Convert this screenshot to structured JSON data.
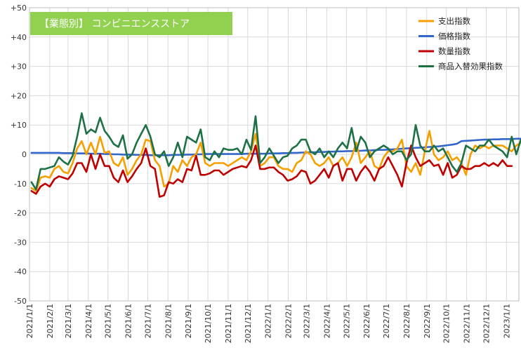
{
  "chart_data": {
    "type": "line",
    "title": "【業態別】 コンビニエンスストア",
    "title_bg_color": "#92d050",
    "xlabel": "",
    "ylabel": "",
    "ylim": [
      -50,
      50
    ],
    "y_ticks": [
      "-50",
      "-40",
      "-30",
      "-20",
      "-10",
      "0",
      "+10",
      "+20",
      "+30",
      "+40",
      "+50"
    ],
    "y_tick_values": [
      -50,
      -40,
      -30,
      -20,
      -10,
      0,
      10,
      20,
      30,
      40,
      50
    ],
    "x_labels": [
      "2021/1/1",
      "2021/2/1",
      "2021/3/1",
      "2021/4/1",
      "2021/5/1",
      "2021/6/1",
      "2021/7/1",
      "2021/8/1",
      "2021/9/1",
      "2021/10/1",
      "2021/11/1",
      "2021/12/1",
      "2022/1/1",
      "2022/2/1",
      "2022/3/1",
      "2022/4/1",
      "2022/5/1",
      "2022/6/1",
      "2022/7/1",
      "2022/8/1",
      "2022/9/1",
      "2022/10/1",
      "2022/11/1",
      "2022/12/1",
      "2023/1/1"
    ],
    "x_label_values": [
      "2021-01-01",
      "2021-02-01",
      "2021-03-01",
      "2021-04-01",
      "2021-05-01",
      "2021-06-01",
      "2021-07-01",
      "2021-08-01",
      "2021-09-01",
      "2021-10-01",
      "2021-11-01",
      "2021-12-01",
      "2022-01-01",
      "2022-02-01",
      "2022-03-01",
      "2022-04-01",
      "2022-05-01",
      "2022-06-01",
      "2022-07-01",
      "2022-08-01",
      "2022-09-01",
      "2022-10-01",
      "2022-11-01",
      "2022-12-01",
      "2023-01-01"
    ],
    "x_start": "2021-01-04",
    "x_step_days": 7,
    "x_range": [
      "2021-01-01",
      "2023-01-20"
    ],
    "grid": true,
    "legend_position": "top-right",
    "series": [
      {
        "name": "支出指数",
        "color": "#f5a000",
        "values": [
          -11.5,
          -12.5,
          -8,
          -7.5,
          -8,
          -5,
          -4,
          -6,
          -6.5,
          -3,
          2,
          4.5,
          0,
          4,
          0,
          6,
          0.5,
          1,
          -3,
          -4,
          -1,
          -7,
          -5,
          -2,
          0,
          5,
          4.5,
          -2,
          -4,
          -11,
          -10,
          -4,
          -6,
          -2,
          -4,
          -1,
          0,
          4,
          -3,
          -4,
          -3,
          -3,
          -3,
          -4,
          -3,
          -2,
          -1,
          -2,
          1,
          7,
          -4,
          -3,
          -1,
          -1,
          -4,
          -5,
          -5,
          -6,
          -3,
          -2,
          1,
          0,
          -3,
          -4,
          -3,
          -1,
          -4,
          -3,
          -1,
          -4,
          -1,
          4,
          -3,
          -1,
          1,
          -4,
          -5,
          -1,
          1,
          1,
          2,
          5,
          -4,
          -6,
          -3,
          -7,
          1,
          8,
          0,
          -2,
          -1,
          1,
          -2,
          -1,
          -3,
          -7,
          0,
          3,
          2,
          3,
          2,
          3,
          3,
          3,
          2,
          1,
          3,
          4
        ]
      },
      {
        "name": "価格指数",
        "color": "#3366cc",
        "values": [
          0.5,
          0.5,
          0.5,
          0.5,
          0.5,
          0.5,
          0.5,
          0.4,
          0.4,
          0.4,
          0.3,
          0.3,
          0.3,
          0.2,
          0.2,
          0.2,
          0.1,
          0.1,
          0,
          0,
          -0.1,
          -0.1,
          -0.1,
          -0.2,
          -0.2,
          -0.2,
          -0.3,
          -0.3,
          -0.3,
          -0.3,
          -0.3,
          -0.2,
          -0.2,
          -0.2,
          -0.1,
          -0.1,
          0,
          0,
          0.1,
          0.1,
          0.1,
          0.1,
          0.1,
          0.1,
          0.1,
          0.1,
          0.1,
          0.2,
          0.2,
          0.2,
          0.2,
          0.2,
          0.3,
          0.3,
          0.3,
          0.4,
          0.4,
          0.5,
          0.5,
          0.6,
          0.6,
          0.7,
          0.7,
          0.8,
          0.8,
          0.9,
          0.9,
          1,
          1,
          1.1,
          1.1,
          1.2,
          1.2,
          1.3,
          1.3,
          1.4,
          1.5,
          1.5,
          1.6,
          1.7,
          1.8,
          1.9,
          2,
          2.1,
          2.2,
          2.3,
          2.4,
          2.5,
          2.6,
          2.7,
          2.9,
          3.1,
          3.3,
          3.6,
          4.5,
          4.6,
          4.7,
          4.8,
          4.9,
          5,
          5,
          5.1,
          5.1,
          5.2,
          5.2,
          5.2,
          5.3,
          5.3
        ]
      },
      {
        "name": "数量指数",
        "color": "#c00000",
        "values": [
          -12.5,
          -13.5,
          -11,
          -10,
          -11,
          -8.5,
          -7.5,
          -8,
          -8.5,
          -6.5,
          -3,
          -3,
          -6,
          0,
          -5,
          0,
          -4,
          -4,
          -8,
          -9.5,
          -5.5,
          -9.5,
          -7.5,
          -5,
          -3,
          2,
          -4,
          -5,
          -14.5,
          -14,
          -9.5,
          -10,
          -8.5,
          -9.5,
          -5,
          -5.5,
          -0.5,
          -7,
          -7,
          -6.5,
          -5.5,
          -5.5,
          -7,
          -6,
          -5,
          -4.5,
          -4,
          -4.5,
          -2,
          3,
          -5,
          -5,
          -4.5,
          -4.5,
          -6,
          -7,
          -9,
          -8.5,
          -7.5,
          -5.5,
          -6,
          -10,
          -9,
          -7,
          -5,
          -8,
          -4,
          -3,
          -9,
          -5,
          -5,
          -9,
          -6,
          -4,
          -6,
          -9,
          -5,
          -4,
          -1,
          -4,
          -7,
          -11,
          -3,
          3,
          -1,
          -4,
          -3,
          -2,
          -4,
          -3.5,
          -7,
          -3,
          -8,
          -7,
          -4,
          -5,
          -5,
          -4,
          -4,
          -3,
          -4,
          -3,
          -4,
          -2,
          -4,
          -4
        ]
      },
      {
        "name": "商品入替効果指数",
        "color": "#1e7145",
        "values": [
          -9.5,
          -12,
          -5,
          -5,
          -4.5,
          -4,
          -1,
          -2.5,
          -3.5,
          -0.5,
          6,
          14,
          7,
          8.5,
          7.5,
          12.5,
          8,
          6,
          3.5,
          2.5,
          6.5,
          -1.5,
          0,
          4,
          7,
          10,
          6,
          0,
          -1,
          1,
          -4,
          -1,
          4,
          -1,
          6,
          5,
          4,
          8.5,
          -1,
          -2,
          1,
          -1,
          2,
          1.5,
          1.5,
          2,
          0,
          5,
          1.5,
          13,
          -3,
          -1,
          2,
          -0.5,
          -3,
          -1,
          -0.5,
          2,
          3,
          5,
          5,
          1,
          0,
          2,
          -1,
          1,
          -1,
          2,
          4,
          2,
          9,
          1,
          6,
          4,
          -1,
          1,
          2,
          3,
          2,
          0,
          1,
          1,
          -2,
          0,
          10,
          3,
          1,
          1,
          3,
          1,
          2,
          -1,
          -4,
          -6,
          -3,
          3,
          2,
          1,
          3,
          3,
          5,
          3,
          2,
          1,
          -1,
          6,
          0,
          5
        ]
      }
    ]
  }
}
